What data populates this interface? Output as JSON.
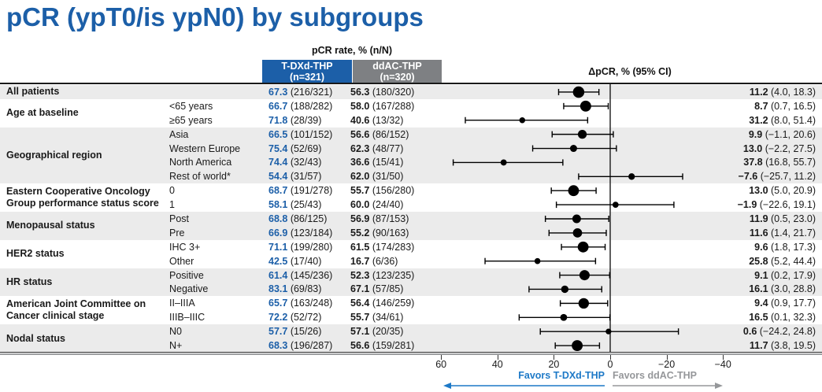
{
  "title": "pCR (ypT0/is ypN0) by subgroups",
  "header": {
    "rate_header": "pCR rate, % (n/N)",
    "arm1": {
      "name": "T-DXd-THP",
      "n": "(n=321)"
    },
    "arm2": {
      "name": "ddAC-THP",
      "n": "(n=320)"
    },
    "delta_header": "ΔpCR, % (95% CI)"
  },
  "footer": {
    "favors_left": "Favors T-DXd-THP",
    "favors_right": "Favors ddAC-THP"
  },
  "colors": {
    "title_blue": "#1c5fa8",
    "arm1_header_bg": "#1c5fa8",
    "arm2_header_bg": "#7e8083",
    "tdxd_value_blue": "#1c5fa8",
    "stripe_gray": "#ebebeb",
    "favors_blue": "#1d79c7",
    "favors_gray": "#95979a",
    "marker_black": "#000000"
  },
  "chart_data": {
    "type": "forest",
    "delta_axis": {
      "values": [
        60,
        40,
        20,
        0,
        -20,
        -40
      ],
      "labels": [
        "60",
        "40",
        "20",
        "0",
        "−20",
        "−40"
      ],
      "reversed": true
    },
    "groups": [
      {
        "label": "All patients",
        "shaded": true,
        "rows": [
          {
            "label": "",
            "n": 641,
            "tdxd_pct": "67.3",
            "tdxd_frac": "(216/321)",
            "ddac_pct": "56.3",
            "ddac_frac": "(180/320)",
            "delta": 11.2,
            "lo": 4.0,
            "hi": 18.3,
            "delta_text": "11.2",
            "ci_text": "(4.0, 18.3)"
          }
        ]
      },
      {
        "label": "Age at baseline",
        "shaded": false,
        "rows": [
          {
            "label": "<65 years",
            "n": 570,
            "tdxd_pct": "66.7",
            "tdxd_frac": "(188/282)",
            "ddac_pct": "58.0",
            "ddac_frac": "(167/288)",
            "delta": 8.7,
            "lo": 0.7,
            "hi": 16.5,
            "delta_text": "8.7",
            "ci_text": "(0.7, 16.5)"
          },
          {
            "label": "≥65 years",
            "n": 71,
            "tdxd_pct": "71.8",
            "tdxd_frac": "(28/39)",
            "ddac_pct": "40.6",
            "ddac_frac": "(13/32)",
            "delta": 31.2,
            "lo": 8.0,
            "hi": 51.4,
            "delta_text": "31.2",
            "ci_text": "(8.0, 51.4)"
          }
        ]
      },
      {
        "label": "Geographical region",
        "shaded": true,
        "rows": [
          {
            "label": "Asia",
            "n": 304,
            "tdxd_pct": "66.5",
            "tdxd_frac": "(101/152)",
            "ddac_pct": "56.6",
            "ddac_frac": "(86/152)",
            "delta": 9.9,
            "lo": -1.1,
            "hi": 20.6,
            "delta_text": "9.9",
            "ci_text": "(−1.1, 20.6)"
          },
          {
            "label": "Western Europe",
            "n": 146,
            "tdxd_pct": "75.4",
            "tdxd_frac": "(52/69)",
            "ddac_pct": "62.3",
            "ddac_frac": "(48/77)",
            "delta": 13.0,
            "lo": -2.2,
            "hi": 27.5,
            "delta_text": "13.0",
            "ci_text": "(−2.2, 27.5)"
          },
          {
            "label": "North America",
            "n": 84,
            "tdxd_pct": "74.4",
            "tdxd_frac": "(32/43)",
            "ddac_pct": "36.6",
            "ddac_frac": "(15/41)",
            "delta": 37.8,
            "lo": 16.8,
            "hi": 55.7,
            "delta_text": "37.8",
            "ci_text": "(16.8, 55.7)"
          },
          {
            "label": "Rest of world*",
            "n": 107,
            "tdxd_pct": "54.4",
            "tdxd_frac": "(31/57)",
            "ddac_pct": "62.0",
            "ddac_frac": "(31/50)",
            "delta": -7.6,
            "lo": -25.7,
            "hi": 11.2,
            "delta_text": "−7.6",
            "ci_text": "(−25.7, 11.2)"
          }
        ]
      },
      {
        "label": "Eastern Cooperative Oncology Group performance status score",
        "shaded": false,
        "rows": [
          {
            "label": "0",
            "n": 558,
            "tdxd_pct": "68.7",
            "tdxd_frac": "(191/278)",
            "ddac_pct": "55.7",
            "ddac_frac": "(156/280)",
            "delta": 13.0,
            "lo": 5.0,
            "hi": 20.9,
            "delta_text": "13.0",
            "ci_text": "(5.0, 20.9)"
          },
          {
            "label": "1",
            "n": 83,
            "tdxd_pct": "58.1",
            "tdxd_frac": "(25/43)",
            "ddac_pct": "60.0",
            "ddac_frac": "(24/40)",
            "delta": -1.9,
            "lo": -22.6,
            "hi": 19.1,
            "delta_text": "−1.9",
            "ci_text": "(−22.6, 19.1)"
          }
        ]
      },
      {
        "label": "Menopausal status",
        "shaded": true,
        "rows": [
          {
            "label": "Post",
            "n": 278,
            "tdxd_pct": "68.8",
            "tdxd_frac": "(86/125)",
            "ddac_pct": "56.9",
            "ddac_frac": "(87/153)",
            "delta": 11.9,
            "lo": 0.5,
            "hi": 23.0,
            "delta_text": "11.9",
            "ci_text": "(0.5, 23.0)"
          },
          {
            "label": "Pre",
            "n": 347,
            "tdxd_pct": "66.9",
            "tdxd_frac": "(123/184)",
            "ddac_pct": "55.2",
            "ddac_frac": "(90/163)",
            "delta": 11.6,
            "lo": 1.4,
            "hi": 21.7,
            "delta_text": "11.6",
            "ci_text": "(1.4, 21.7)"
          }
        ]
      },
      {
        "label": "HER2 status",
        "shaded": false,
        "rows": [
          {
            "label": "IHC 3+",
            "n": 563,
            "tdxd_pct": "71.1",
            "tdxd_frac": "(199/280)",
            "ddac_pct": "61.5",
            "ddac_frac": "(174/283)",
            "delta": 9.6,
            "lo": 1.8,
            "hi": 17.3,
            "delta_text": "9.6",
            "ci_text": "(1.8, 17.3)"
          },
          {
            "label": "Other",
            "n": 76,
            "tdxd_pct": "42.5",
            "tdxd_frac": "(17/40)",
            "ddac_pct": "16.7",
            "ddac_frac": "(6/36)",
            "delta": 25.8,
            "lo": 5.2,
            "hi": 44.4,
            "delta_text": "25.8",
            "ci_text": "(5.2, 44.4)"
          }
        ]
      },
      {
        "label": "HR status",
        "shaded": true,
        "rows": [
          {
            "label": "Positive",
            "n": 471,
            "tdxd_pct": "61.4",
            "tdxd_frac": "(145/236)",
            "ddac_pct": "52.3",
            "ddac_frac": "(123/235)",
            "delta": 9.1,
            "lo": 0.2,
            "hi": 17.9,
            "delta_text": "9.1",
            "ci_text": "(0.2, 17.9)"
          },
          {
            "label": "Negative",
            "n": 168,
            "tdxd_pct": "83.1",
            "tdxd_frac": "(69/83)",
            "ddac_pct": "67.1",
            "ddac_frac": "(57/85)",
            "delta": 16.1,
            "lo": 3.0,
            "hi": 28.8,
            "delta_text": "16.1",
            "ci_text": "(3.0, 28.8)"
          }
        ]
      },
      {
        "label": "American Joint Committee on Cancer clinical stage",
        "shaded": false,
        "rows": [
          {
            "label": "II–IIIA",
            "n": 507,
            "tdxd_pct": "65.7",
            "tdxd_frac": "(163/248)",
            "ddac_pct": "56.4",
            "ddac_frac": "(146/259)",
            "delta": 9.4,
            "lo": 0.9,
            "hi": 17.7,
            "delta_text": "9.4",
            "ci_text": "(0.9, 17.7)"
          },
          {
            "label": "IIIB–IIIC",
            "n": 133,
            "tdxd_pct": "72.2",
            "tdxd_frac": "(52/72)",
            "ddac_pct": "55.7",
            "ddac_frac": "(34/61)",
            "delta": 16.5,
            "lo": 0.1,
            "hi": 32.3,
            "delta_text": "16.5",
            "ci_text": "(0.1, 32.3)"
          }
        ]
      },
      {
        "label": "Nodal status",
        "shaded": true,
        "rows": [
          {
            "label": "N0",
            "n": 61,
            "tdxd_pct": "57.7",
            "tdxd_frac": "(15/26)",
            "ddac_pct": "57.1",
            "ddac_frac": "(20/35)",
            "delta": 0.6,
            "lo": -24.2,
            "hi": 24.8,
            "delta_text": "0.6",
            "ci_text": "(−24.2, 24.8)"
          },
          {
            "label": "N+",
            "n": 568,
            "tdxd_pct": "68.3",
            "tdxd_frac": "(196/287)",
            "ddac_pct": "56.6",
            "ddac_frac": "(159/281)",
            "delta": 11.7,
            "lo": 3.8,
            "hi": 19.5,
            "delta_text": "11.7",
            "ci_text": "(3.8, 19.5)"
          }
        ]
      }
    ]
  }
}
